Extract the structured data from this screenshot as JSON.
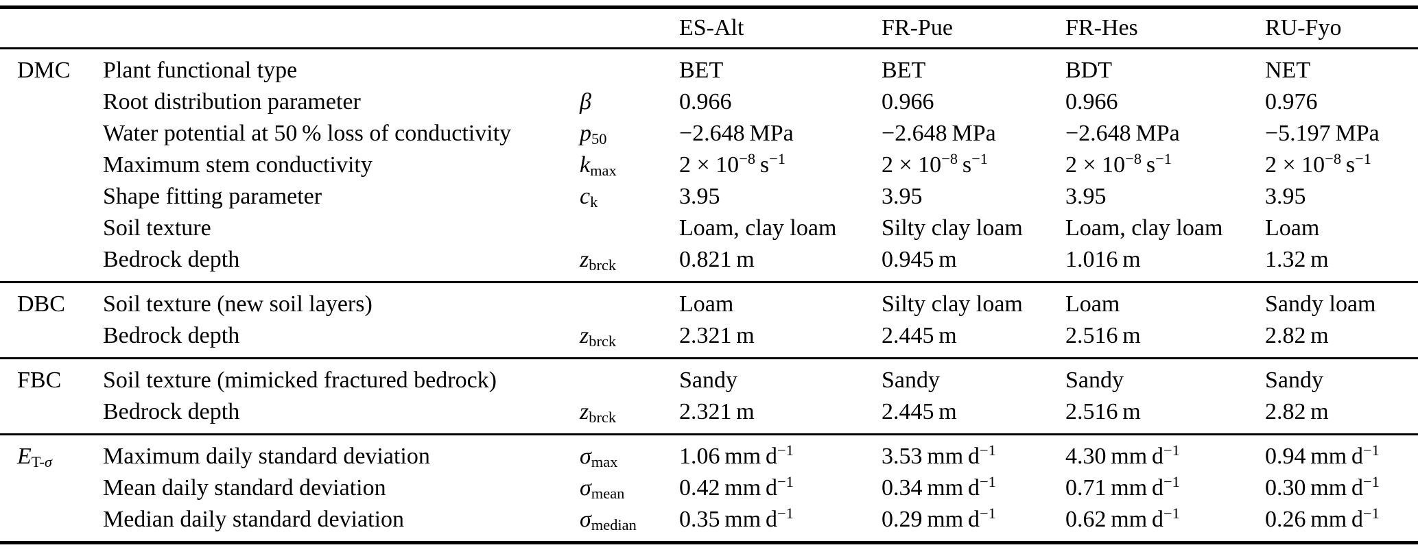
{
  "colors": {
    "background": "#ffffff",
    "text": "#000000",
    "rule": "#000000"
  },
  "table": {
    "description": "Site parameter table",
    "header": {
      "sites": [
        "ES-Alt",
        "FR-Pue",
        "FR-Hes",
        "RU-Fyo"
      ]
    },
    "sections": [
      {
        "id": "dmc",
        "group": "DMC",
        "rows": [
          {
            "parameter": "Plant functional type",
            "symbol": "",
            "values": [
              "BET",
              "BET",
              "BDT",
              "NET"
            ]
          },
          {
            "parameter": "Root distribution parameter",
            "symbol": "*β*",
            "values": [
              "0.966",
              "0.966",
              "0.966",
              "0.976"
            ]
          },
          {
            "parameter": "Water potential at 50 % loss of conductivity",
            "symbol": "*p*_{50}",
            "values": [
              "−2.648 MPa",
              "−2.648 MPa",
              "−2.648 MPa",
              "−5.197 MPa"
            ]
          },
          {
            "parameter": "Maximum stem conductivity",
            "symbol": "*k*_{max}",
            "values": [
              "2 × 10^{−8} s^{−1}",
              "2 × 10^{−8} s^{−1}",
              "2 × 10^{−8} s^{−1}",
              "2 × 10^{−8} s^{−1}"
            ]
          },
          {
            "parameter": "Shape fitting parameter",
            "symbol": "*c*_{k}",
            "values": [
              "3.95",
              "3.95",
              "3.95",
              "3.95"
            ]
          },
          {
            "parameter": "Soil texture",
            "symbol": "",
            "values": [
              "Loam, clay loam",
              "Silty clay loam",
              "Loam, clay loam",
              "Loam"
            ]
          },
          {
            "parameter": "Bedrock depth",
            "symbol": "*z*_{brck}",
            "values": [
              "0.821 m",
              "0.945 m",
              "1.016 m",
              "1.32 m"
            ]
          }
        ]
      },
      {
        "id": "dbc",
        "group": "DBC",
        "rows": [
          {
            "parameter": "Soil texture (new soil layers)",
            "symbol": "",
            "values": [
              "Loam",
              "Silty clay loam",
              "Loam",
              "Sandy loam"
            ]
          },
          {
            "parameter": "Bedrock depth",
            "symbol": "*z*_{brck}",
            "values": [
              "2.321 m",
              "2.445 m",
              "2.516 m",
              "2.82 m"
            ]
          }
        ]
      },
      {
        "id": "fbc",
        "group": "FBC",
        "rows": [
          {
            "parameter": "Soil texture (mimicked fractured bedrock)",
            "symbol": "",
            "values": [
              "Sandy",
              "Sandy",
              "Sandy",
              "Sandy"
            ]
          },
          {
            "parameter": "Bedrock depth",
            "symbol": "*z*_{brck}",
            "values": [
              "2.321 m",
              "2.445 m",
              "2.516 m",
              "2.82 m"
            ]
          }
        ]
      },
      {
        "id": "et-sigma",
        "group": "*E*_{T-*σ*}",
        "rows": [
          {
            "parameter": "Maximum daily standard deviation",
            "symbol": "*σ*_{max}",
            "values": [
              "1.06 mm d^{−1}",
              "3.53 mm d^{−1}",
              "4.30 mm d^{−1}",
              "0.94 mm d^{−1}"
            ]
          },
          {
            "parameter": "Mean daily standard deviation",
            "symbol": "*σ*_{mean}",
            "values": [
              "0.42 mm d^{−1}",
              "0.34 mm d^{−1}",
              "0.71 mm d^{−1}",
              "0.30 mm d^{−1}"
            ]
          },
          {
            "parameter": "Median daily standard deviation",
            "symbol": "*σ*_{median}",
            "values": [
              "0.35 mm d^{−1}",
              "0.29 mm d^{−1}",
              "0.62 mm d^{−1}",
              "0.26 mm d^{−1}"
            ]
          }
        ]
      }
    ]
  }
}
